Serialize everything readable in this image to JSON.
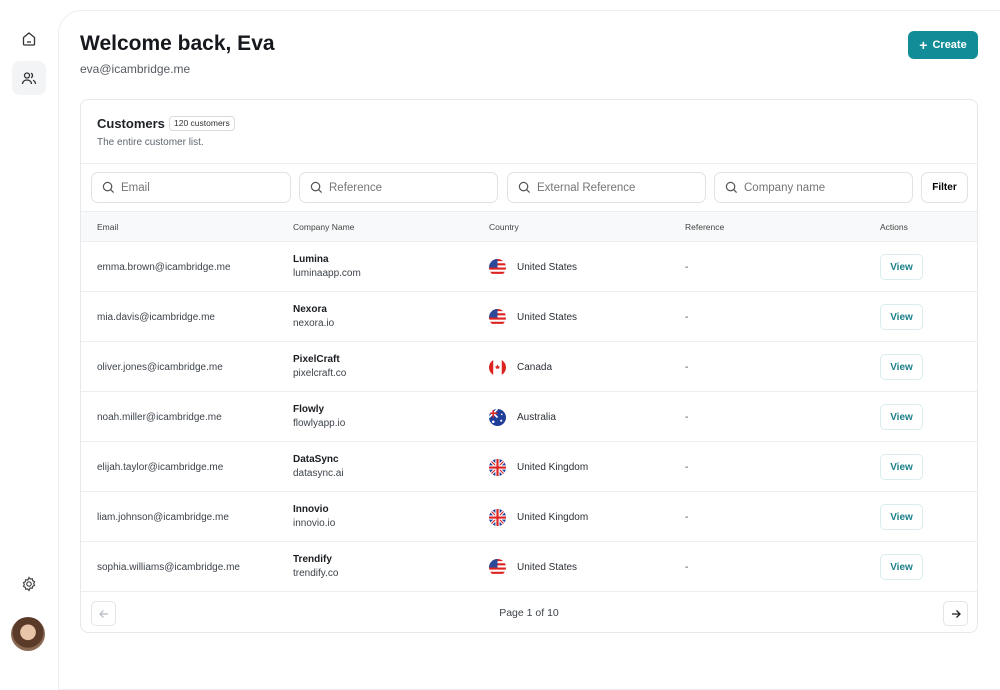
{
  "sidebar": {
    "items": [
      {
        "icon": "home-icon"
      },
      {
        "icon": "users-icon",
        "active": true
      },
      {
        "icon": "settings-icon"
      }
    ]
  },
  "header": {
    "title": "Welcome back, Eva",
    "email": "eva@icambridge.me",
    "create_label": "Create"
  },
  "customers": {
    "title": "Customers",
    "count_badge": "120 customers",
    "subtitle": "The entire customer list.",
    "filters": {
      "email": "Email",
      "reference": "Reference",
      "external_reference": "External Reference",
      "company_name": "Company name",
      "filter_label": "Filter"
    },
    "columns": [
      "Email",
      "Company Name",
      "Country",
      "Reference",
      "Actions"
    ],
    "rows": [
      {
        "email": "emma.brown@icambridge.me",
        "company": "Lumina",
        "domain": "luminaapp.com",
        "country": "United States",
        "flag": "us",
        "reference": "-",
        "action": "View"
      },
      {
        "email": "mia.davis@icambridge.me",
        "company": "Nexora",
        "domain": "nexora.io",
        "country": "United States",
        "flag": "us",
        "reference": "-",
        "action": "View"
      },
      {
        "email": "oliver.jones@icambridge.me",
        "company": "PixelCraft",
        "domain": "pixelcraft.co",
        "country": "Canada",
        "flag": "ca",
        "reference": "-",
        "action": "View"
      },
      {
        "email": "noah.miller@icambridge.me",
        "company": "Flowly",
        "domain": "flowlyapp.io",
        "country": "Australia",
        "flag": "au",
        "reference": "-",
        "action": "View"
      },
      {
        "email": "elijah.taylor@icambridge.me",
        "company": "DataSync",
        "domain": "datasync.ai",
        "country": "United Kingdom",
        "flag": "gb",
        "reference": "-",
        "action": "View"
      },
      {
        "email": "liam.johnson@icambridge.me",
        "company": "Innovio",
        "domain": "innovio.io",
        "country": "United Kingdom",
        "flag": "gb",
        "reference": "-",
        "action": "View"
      },
      {
        "email": "sophia.williams@icambridge.me",
        "company": "Trendify",
        "domain": "trendify.co",
        "country": "United States",
        "flag": "us",
        "reference": "-",
        "action": "View"
      }
    ],
    "pagination": {
      "text": "Page 1 of 10",
      "current": 1,
      "total": 10
    }
  },
  "colors": {
    "accent": "#128d98"
  }
}
